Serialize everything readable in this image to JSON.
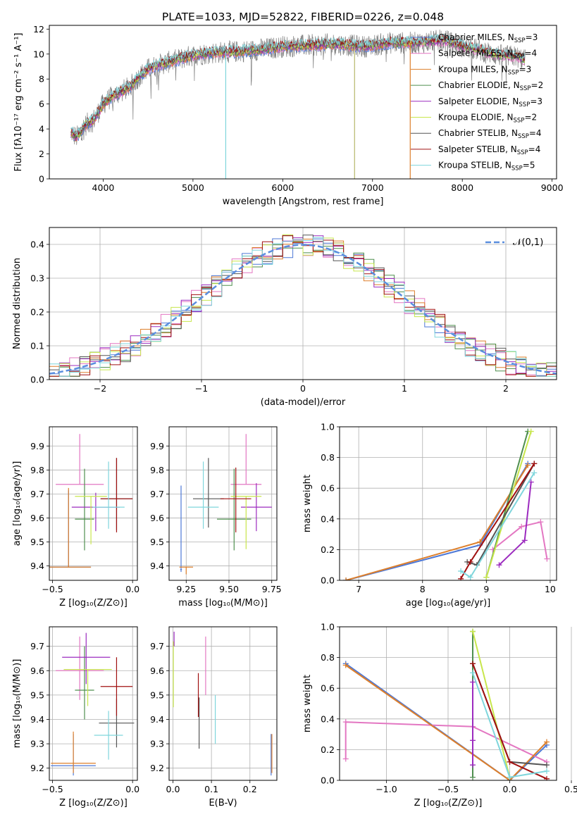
{
  "title": "PLATE=1033, MJD=52822, FIBERID=0226, z=0.048",
  "colors": {
    "Chabrier MILES": "#4e79d7",
    "Salpeter MILES": "#e377c2",
    "Kroupa MILES": "#dd7f2b",
    "Chabrier ELODIE": "#4f8f4f",
    "Salpeter ELODIE": "#9c2bbf",
    "Kroupa ELODIE": "#c8e64c",
    "Chabrier STELIB": "#555555",
    "Salpeter STELIB": "#a01010",
    "Kroupa STELIB": "#7fd6dc"
  },
  "legend_models": [
    {
      "name": "Chabrier MILES",
      "nssp": "3"
    },
    {
      "name": "Salpeter MILES",
      "nssp": "4"
    },
    {
      "name": "Kroupa MILES",
      "nssp": "3"
    },
    {
      "name": "Chabrier ELODIE",
      "nssp": "2"
    },
    {
      "name": "Salpeter ELODIE",
      "nssp": "3"
    },
    {
      "name": "Kroupa ELODIE",
      "nssp": "2"
    },
    {
      "name": "Chabrier STELIB",
      "nssp": "4"
    },
    {
      "name": "Salpeter STELIB",
      "nssp": "4"
    },
    {
      "name": "Kroupa STELIB",
      "nssp": "5"
    }
  ],
  "chart_data": [
    {
      "id": "spectrum",
      "type": "line",
      "xlabel": "wavelength [Angstrom, rest frame]",
      "ylabel": "Flux [fλ10⁻¹⁷ erg cm⁻² s⁻¹ A⁻¹]",
      "xlim": [
        3400,
        9050
      ],
      "ylim": [
        0,
        12.3
      ],
      "xticks": [
        4000,
        5000,
        6000,
        7000,
        8000,
        9000
      ],
      "yticks": [
        0,
        2,
        4,
        6,
        8,
        10,
        12
      ],
      "grid": false,
      "legend_placement": "top-right",
      "data_wavelength_range": [
        3640,
        8700
      ],
      "continuum": {
        "x": [
          3640,
          3700,
          3800,
          3900,
          4000,
          4100,
          4200,
          4300,
          4400,
          4500,
          4600,
          4800,
          5000,
          5200,
          5500,
          5800,
          6000,
          6300,
          6600,
          6900,
          7200,
          7500,
          7800,
          8000,
          8200,
          8400,
          8600,
          8700
        ],
        "y": [
          3.8,
          3.3,
          4.3,
          4.8,
          6.0,
          6.6,
          7.0,
          7.4,
          8.2,
          8.8,
          9.1,
          9.5,
          9.9,
          10.1,
          10.2,
          10.4,
          10.6,
          10.7,
          10.8,
          10.6,
          10.9,
          10.9,
          11.1,
          10.6,
          10.3,
          9.9,
          9.8,
          9.5
        ]
      }
    },
    {
      "id": "residuals",
      "type": "histogram",
      "xlabel": "(data-model)/error",
      "ylabel": "Normed distribution",
      "xlim": [
        -2.5,
        2.5
      ],
      "ylim": [
        0,
        0.45
      ],
      "xticks": [
        -2,
        -1,
        0,
        1,
        2
      ],
      "yticks": [
        0.0,
        0.1,
        0.2,
        0.3,
        0.4
      ],
      "grid": true,
      "reference_curve": "𝒩(0,1)",
      "legend_placement": "top-right",
      "bin_width": 0.1
    },
    {
      "id": "age_vs_Z",
      "type": "errorbar",
      "xlabel": "Z [log₁₀(Z/Z⊙)]",
      "ylabel": "age  [log₁₀(age/yr)]",
      "xlim": [
        -0.52,
        0.03
      ],
      "ylim": [
        9.34,
        9.98
      ],
      "xticks": [
        -0.5,
        0.0
      ],
      "yticks": [
        9.4,
        9.5,
        9.6,
        9.7,
        9.8,
        9.9
      ],
      "grid": true,
      "points": [
        {
          "model": "Chabrier MILES",
          "x": -0.4,
          "y": 9.395,
          "xerr": 0.14,
          "yerr": [
            0.0,
            0.32
          ]
        },
        {
          "model": "Salpeter MILES",
          "x": -0.33,
          "y": 9.74,
          "xerr": 0.15,
          "yerr": [
            0.0,
            0.21
          ]
        },
        {
          "model": "Kroupa MILES",
          "x": -0.4,
          "y": 9.395,
          "xerr": 0.14,
          "yerr": [
            0.0,
            0.33
          ]
        },
        {
          "model": "Chabrier ELODIE",
          "x": -0.3,
          "y": 9.595,
          "xerr": 0.06,
          "yerr": [
            0.13,
            0.21
          ]
        },
        {
          "model": "Salpeter ELODIE",
          "x": -0.23,
          "y": 9.645,
          "xerr": 0.15,
          "yerr": [
            0.1,
            0.06
          ]
        },
        {
          "model": "Kroupa ELODIE",
          "x": -0.26,
          "y": 9.69,
          "xerr": 0.1,
          "yerr": [
            0.2,
            0.0
          ]
        },
        {
          "model": "Chabrier STELIB",
          "x": -0.1,
          "y": 9.68,
          "xerr": 0.1,
          "yerr": [
            0.13,
            0.17
          ]
        },
        {
          "model": "Salpeter STELIB",
          "x": -0.1,
          "y": 9.68,
          "xerr": 0.1,
          "yerr": [
            0.14,
            0.17
          ]
        },
        {
          "model": "Kroupa STELIB",
          "x": -0.15,
          "y": 9.645,
          "xerr": 0.1,
          "yerr": [
            0.09,
            0.19
          ]
        }
      ]
    },
    {
      "id": "age_vs_mass",
      "type": "errorbar",
      "xlabel": "mass [log₁₀(M/M⊙)]",
      "ylabel": "",
      "xlim": [
        9.15,
        9.78
      ],
      "ylim": [
        9.34,
        9.98
      ],
      "xticks": [
        9.25,
        9.5,
        9.75
      ],
      "yticks": [
        9.4,
        9.5,
        9.6,
        9.7,
        9.8,
        9.9
      ],
      "grid": true,
      "points": [
        {
          "model": "Chabrier MILES",
          "x": 9.22,
          "y": 9.385,
          "xerr": 0.005,
          "yerr": [
            0.01,
            0.35
          ]
        },
        {
          "model": "Salpeter MILES",
          "x": 9.6,
          "y": 9.74,
          "xerr": 0.09,
          "yerr": [
            0.0,
            0.21
          ]
        },
        {
          "model": "Kroupa MILES",
          "x": 9.25,
          "y": 9.395,
          "xerr": 0.04,
          "yerr": [
            0.03,
            0.0
          ]
        },
        {
          "model": "Chabrier ELODIE",
          "x": 9.53,
          "y": 9.595,
          "xerr": 0.1,
          "yerr": [
            0.13,
            0.21
          ]
        },
        {
          "model": "Salpeter ELODIE",
          "x": 9.66,
          "y": 9.645,
          "xerr": 0.09,
          "yerr": [
            0.1,
            0.1
          ]
        },
        {
          "model": "Kroupa ELODIE",
          "x": 9.6,
          "y": 9.69,
          "xerr": 0.09,
          "yerr": [
            0.22,
            0.0
          ]
        },
        {
          "model": "Chabrier STELIB",
          "x": 9.38,
          "y": 9.68,
          "xerr": 0.09,
          "yerr": [
            0.12,
            0.17
          ]
        },
        {
          "model": "Salpeter STELIB",
          "x": 9.54,
          "y": 9.68,
          "xerr": 0.09,
          "yerr": [
            0.14,
            0.13
          ]
        },
        {
          "model": "Kroupa STELIB",
          "x": 9.35,
          "y": 9.645,
          "xerr": 0.09,
          "yerr": [
            0.09,
            0.19
          ]
        }
      ]
    },
    {
      "id": "massweight_vs_age",
      "type": "line",
      "xlabel": "age  [log₁₀(age/yr)]",
      "ylabel": "mass weight",
      "xlim": [
        6.7,
        10.1
      ],
      "ylim": [
        0,
        1.0
      ],
      "xticks": [
        7,
        8,
        9,
        10
      ],
      "yticks": [
        0.0,
        0.2,
        0.4,
        0.6,
        0.8,
        1.0
      ],
      "grid": true,
      "series": [
        {
          "model": "Chabrier MILES",
          "x": [
            6.8,
            8.9,
            9.65
          ],
          "y": [
            0.0,
            0.23,
            0.76
          ]
        },
        {
          "model": "Salpeter MILES",
          "x": [
            9.1,
            9.55,
            9.85,
            9.95
          ],
          "y": [
            0.2,
            0.35,
            0.38,
            0.14
          ]
        },
        {
          "model": "Kroupa MILES",
          "x": [
            6.8,
            8.9,
            9.65
          ],
          "y": [
            0.0,
            0.25,
            0.75
          ]
        },
        {
          "model": "Chabrier ELODIE",
          "x": [
            9.0,
            9.65
          ],
          "y": [
            0.02,
            0.97
          ]
        },
        {
          "model": "Salpeter ELODIE",
          "x": [
            9.2,
            9.6,
            9.7
          ],
          "y": [
            0.1,
            0.26,
            0.64
          ]
        },
        {
          "model": "Kroupa ELODIE",
          "x": [
            9.0,
            9.7
          ],
          "y": [
            0.02,
            0.97
          ]
        },
        {
          "model": "Chabrier STELIB",
          "x": [
            8.7,
            8.85,
            9.75
          ],
          "y": [
            0.12,
            0.1,
            0.76
          ]
        },
        {
          "model": "Salpeter STELIB",
          "x": [
            8.6,
            8.75,
            9.75
          ],
          "y": [
            0.01,
            0.12,
            0.76
          ]
        },
        {
          "model": "Kroupa STELIB",
          "x": [
            8.6,
            8.75,
            9.75
          ],
          "y": [
            0.06,
            0.02,
            0.7
          ]
        }
      ]
    },
    {
      "id": "mass_vs_Z",
      "type": "errorbar",
      "xlabel": "Z [log₁₀(Z/Z⊙)]",
      "ylabel": "mass [log₁₀(M/M⊙)]",
      "xlim": [
        -0.52,
        0.03
      ],
      "ylim": [
        9.15,
        9.78
      ],
      "xticks": [
        -0.5,
        0.0
      ],
      "yticks": [
        9.2,
        9.3,
        9.4,
        9.5,
        9.6,
        9.7
      ],
      "grid": true,
      "points": [
        {
          "model": "Chabrier MILES",
          "x": -0.37,
          "y": 9.21,
          "xerr": 0.14,
          "yerr": [
            0.04,
            0.13
          ]
        },
        {
          "model": "Salpeter MILES",
          "x": -0.33,
          "y": 9.6,
          "xerr": 0.15,
          "yerr": [
            0.12,
            0.14
          ]
        },
        {
          "model": "Kroupa MILES",
          "x": -0.37,
          "y": 9.22,
          "xerr": 0.14,
          "yerr": [
            0.04,
            0.13
          ]
        },
        {
          "model": "Chabrier ELODIE",
          "x": -0.3,
          "y": 9.52,
          "xerr": 0.06,
          "yerr": [
            0.12,
            0.18
          ]
        },
        {
          "model": "Salpeter ELODIE",
          "x": -0.29,
          "y": 9.655,
          "xerr": 0.15,
          "yerr": [
            0.11,
            0.1
          ]
        },
        {
          "model": "Kroupa ELODIE",
          "x": -0.28,
          "y": 9.605,
          "xerr": 0.15,
          "yerr": [
            0.15,
            0.0
          ]
        },
        {
          "model": "Chabrier STELIB",
          "x": -0.1,
          "y": 9.385,
          "xerr": 0.11,
          "yerr": [
            0.1,
            0.1
          ]
        },
        {
          "model": "Salpeter STELIB",
          "x": -0.1,
          "y": 9.535,
          "xerr": 0.1,
          "yerr": [
            0.12,
            0.12
          ]
        },
        {
          "model": "Kroupa STELIB",
          "x": -0.15,
          "y": 9.335,
          "xerr": 0.09,
          "yerr": [
            0.1,
            0.1
          ]
        }
      ]
    },
    {
      "id": "mass_vs_EBV",
      "type": "errorbar",
      "xlabel": "E(B-V)",
      "ylabel": "",
      "xlim": [
        -0.01,
        0.27
      ],
      "ylim": [
        9.15,
        9.78
      ],
      "xticks": [
        0.0,
        0.1,
        0.2
      ],
      "yticks": [
        9.2,
        9.3,
        9.4,
        9.5,
        9.6,
        9.7
      ],
      "grid": true,
      "points": [
        {
          "model": "Chabrier MILES",
          "x": 0.255,
          "y": 9.18,
          "xerr": 0.0,
          "yerr": [
            0.01,
            0.16
          ]
        },
        {
          "model": "Salpeter MILES",
          "x": 0.085,
          "y": 9.6,
          "xerr": 0.0,
          "yerr": [
            0.1,
            0.14
          ]
        },
        {
          "model": "Kroupa MILES",
          "x": 0.257,
          "y": 9.19,
          "xerr": 0.0,
          "yerr": [
            0.01,
            0.15
          ]
        },
        {
          "model": "Chabrier ELODIE",
          "x": 0.002,
          "y": 9.52,
          "xerr": 0.0,
          "yerr": [
            0.0,
            0.0
          ]
        },
        {
          "model": "Salpeter ELODIE",
          "x": 0.003,
          "y": 9.72,
          "xerr": 0.0,
          "yerr": [
            0.02,
            0.04
          ]
        },
        {
          "model": "Kroupa ELODIE",
          "x": 0.001,
          "y": 9.57,
          "xerr": 0.0,
          "yerr": [
            0.12,
            0.15
          ]
        },
        {
          "model": "Chabrier STELIB",
          "x": 0.068,
          "y": 9.39,
          "xerr": 0.0,
          "yerr": [
            0.11,
            0.1
          ]
        },
        {
          "model": "Salpeter STELIB",
          "x": 0.066,
          "y": 9.5,
          "xerr": 0.0,
          "yerr": [
            0.09,
            0.09
          ]
        },
        {
          "model": "Kroupa STELIB",
          "x": 0.11,
          "y": 9.38,
          "xerr": 0.0,
          "yerr": [
            0.08,
            0.12
          ]
        }
      ]
    },
    {
      "id": "massweight_vs_Z",
      "type": "line",
      "xlabel": "Z [log₁₀(Z/Z⊙)]",
      "ylabel": "mass weight",
      "xlim": [
        -1.38,
        0.38
      ],
      "ylim": [
        0,
        1.0
      ],
      "xticks": [
        -1.0,
        -0.5,
        0.0,
        0.5
      ],
      "yticks": [
        0.0,
        0.2,
        0.4,
        0.6,
        0.8,
        1.0
      ],
      "grid": true,
      "series": [
        {
          "model": "Chabrier MILES",
          "x": [
            -1.33,
            0.0,
            0.3
          ],
          "y": [
            0.76,
            0.0,
            0.23
          ]
        },
        {
          "model": "Salpeter MILES",
          "x": [
            -1.33,
            -1.33,
            -0.3,
            0.3
          ],
          "y": [
            0.14,
            0.38,
            0.35,
            0.12
          ]
        },
        {
          "model": "Kroupa MILES",
          "x": [
            -1.33,
            0.0,
            0.3
          ],
          "y": [
            0.75,
            0.0,
            0.25
          ]
        },
        {
          "model": "Chabrier ELODIE",
          "x": [
            -0.3,
            -0.3
          ],
          "y": [
            0.02,
            0.97
          ]
        },
        {
          "model": "Salpeter ELODIE",
          "x": [
            -0.3,
            -0.3,
            -0.3
          ],
          "y": [
            0.1,
            0.26,
            0.64
          ]
        },
        {
          "model": "Kroupa ELODIE",
          "x": [
            -0.3,
            0.0
          ],
          "y": [
            0.97,
            0.02
          ]
        },
        {
          "model": "Chabrier STELIB",
          "x": [
            -0.3,
            0.0,
            0.3
          ],
          "y": [
            0.76,
            0.12,
            0.1
          ]
        },
        {
          "model": "Salpeter STELIB",
          "x": [
            -0.3,
            0.0,
            0.3
          ],
          "y": [
            0.76,
            0.12,
            0.01
          ]
        },
        {
          "model": "Kroupa STELIB",
          "x": [
            -0.3,
            0.0,
            0.3
          ],
          "y": [
            0.7,
            0.02,
            0.06
          ]
        }
      ]
    }
  ]
}
